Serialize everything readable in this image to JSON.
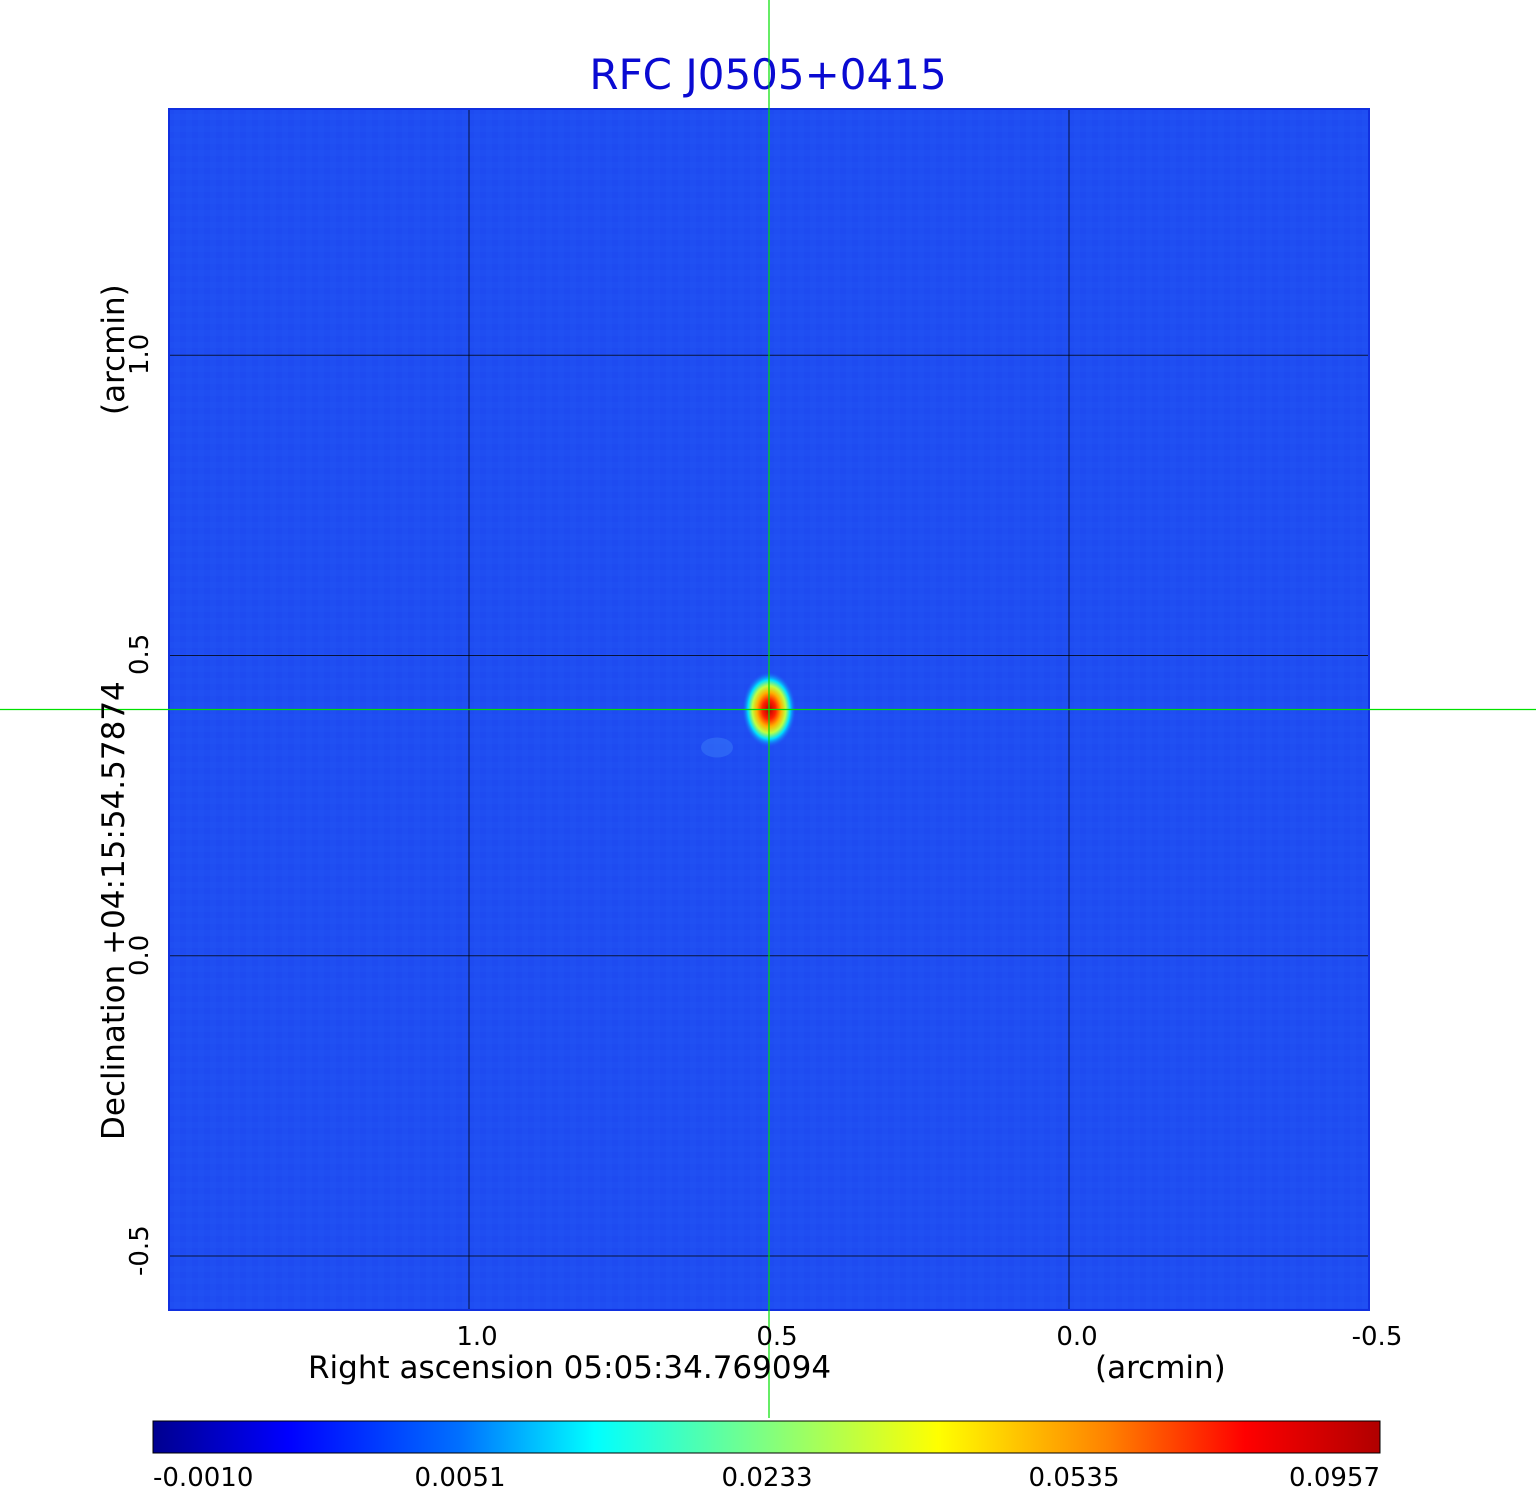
{
  "chart_data": {
    "type": "heatmap",
    "title": "RFC J0505+0415",
    "xlabel": "Right ascension  05:05:34.769094",
    "xunit": "(arcmin)",
    "ylabel": "Declination  +04:15:54.57874",
    "yunit": "(arcmin)",
    "xlim": [
      1.5,
      -0.5
    ],
    "ylim": [
      -0.59,
      1.41
    ],
    "x_ticks": [
      "1.0",
      "0.5",
      "0.0",
      "-0.5"
    ],
    "x_tick_values": [
      1.0,
      0.5,
      0.0,
      -0.5
    ],
    "y_ticks": [
      "-0.5",
      "0.0",
      "0.5",
      "1.0"
    ],
    "y_tick_values": [
      -0.5,
      0.0,
      0.5,
      1.0
    ],
    "grid": true,
    "crosshair": {
      "x": 0.5,
      "y": 0.41,
      "color": "#00e000"
    },
    "peak": {
      "x": 0.5,
      "y": 0.41,
      "value": 0.0957
    },
    "colorbar": {
      "ticks": [
        "-0.0010",
        "0.0051",
        "0.0233",
        "0.0535",
        "0.0957"
      ],
      "tick_values": [
        -0.001,
        0.0051,
        0.0233,
        0.0535,
        0.0957
      ],
      "colormap": "jet"
    },
    "background_color": "#1f4ef2"
  }
}
